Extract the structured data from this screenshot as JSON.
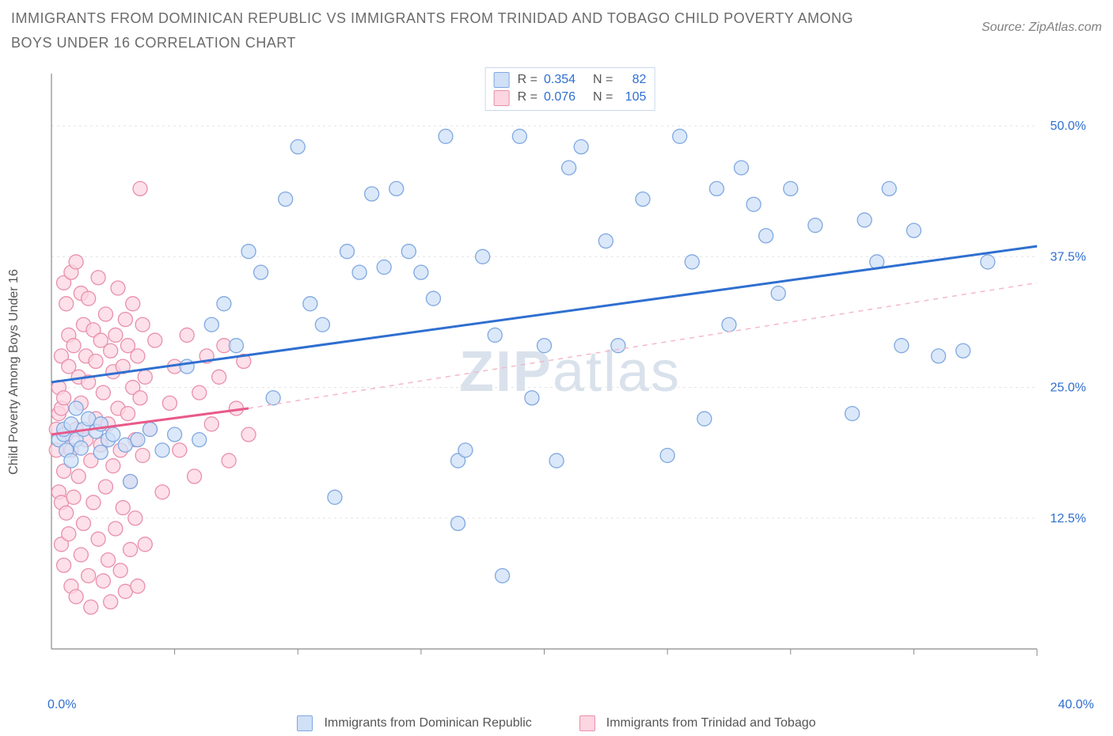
{
  "header": {
    "title": "IMMIGRANTS FROM DOMINICAN REPUBLIC VS IMMIGRANTS FROM TRINIDAD AND TOBAGO CHILD POVERTY AMONG BOYS UNDER 16 CORRELATION CHART",
    "source": "Source: ZipAtlas.com"
  },
  "watermark": {
    "part1": "ZIP",
    "part2": "atlas"
  },
  "chart": {
    "type": "scatter",
    "y_axis_label": "Child Poverty Among Boys Under 16",
    "xlim": [
      0,
      40
    ],
    "ylim": [
      0,
      55
    ],
    "x_ticks": [
      {
        "pos": 0.0,
        "label": "0.0%"
      },
      {
        "pos": 40.0,
        "label": "40.0%"
      }
    ],
    "x_minor_ticks": [
      5,
      10,
      15,
      20,
      25,
      30,
      35
    ],
    "y_ticks": [
      {
        "pos": 12.5,
        "label": "12.5%"
      },
      {
        "pos": 25.0,
        "label": "25.0%"
      },
      {
        "pos": 37.5,
        "label": "37.5%"
      },
      {
        "pos": 50.0,
        "label": "50.0%"
      }
    ],
    "grid_color": "#e4e4e4",
    "axis_color": "#8a8a8a",
    "background": "#ffffff",
    "marker_radius": 9,
    "marker_stroke_width": 1.3,
    "series": [
      {
        "id": "dominican",
        "label": "Immigrants from Dominican Republic",
        "fill": "#cfe0f7",
        "stroke": "#7fa8e0",
        "trend": {
          "x1": 0,
          "y1": 25.5,
          "x2": 40,
          "y2": 38.5,
          "color": "#2f6fd0",
          "width": 3,
          "dash": ""
        },
        "points": [
          [
            0.3,
            20.0
          ],
          [
            0.5,
            20.5
          ],
          [
            0.5,
            21.0
          ],
          [
            0.6,
            19.0
          ],
          [
            0.8,
            21.5
          ],
          [
            0.8,
            18.0
          ],
          [
            1.0,
            20.0
          ],
          [
            1.0,
            23.0
          ],
          [
            1.2,
            19.2
          ],
          [
            1.3,
            21.0
          ],
          [
            1.5,
            22.0
          ],
          [
            1.8,
            20.8
          ],
          [
            2.0,
            18.8
          ],
          [
            2.0,
            21.5
          ],
          [
            2.3,
            20.0
          ],
          [
            2.5,
            20.5
          ],
          [
            3.0,
            19.5
          ],
          [
            3.2,
            16.0
          ],
          [
            3.5,
            20.0
          ],
          [
            4.0,
            21.0
          ],
          [
            4.5,
            19.0
          ],
          [
            5.0,
            20.5
          ],
          [
            5.5,
            27.0
          ],
          [
            6.0,
            20.0
          ],
          [
            6.5,
            31.0
          ],
          [
            7.0,
            33.0
          ],
          [
            7.5,
            29.0
          ],
          [
            8.0,
            38.0
          ],
          [
            8.5,
            36.0
          ],
          [
            9.0,
            24.0
          ],
          [
            9.5,
            43.0
          ],
          [
            10.0,
            48.0
          ],
          [
            10.5,
            33.0
          ],
          [
            11.0,
            31.0
          ],
          [
            11.5,
            14.5
          ],
          [
            12.0,
            38.0
          ],
          [
            12.5,
            36.0
          ],
          [
            13.0,
            43.5
          ],
          [
            13.5,
            36.5
          ],
          [
            14.0,
            44.0
          ],
          [
            14.5,
            38.0
          ],
          [
            15.0,
            36.0
          ],
          [
            15.5,
            33.5
          ],
          [
            16.0,
            49.0
          ],
          [
            16.5,
            12.0
          ],
          [
            16.5,
            18.0
          ],
          [
            16.8,
            19.0
          ],
          [
            17.5,
            37.5
          ],
          [
            18.0,
            30.0
          ],
          [
            18.3,
            7.0
          ],
          [
            19.0,
            49.0
          ],
          [
            19.5,
            24.0
          ],
          [
            20.0,
            29.0
          ],
          [
            20.5,
            18.0
          ],
          [
            21.0,
            46.0
          ],
          [
            21.5,
            48.0
          ],
          [
            22.5,
            39.0
          ],
          [
            23.0,
            29.0
          ],
          [
            24.0,
            43.0
          ],
          [
            25.0,
            18.5
          ],
          [
            25.5,
            49.0
          ],
          [
            26.0,
            37.0
          ],
          [
            26.5,
            22.0
          ],
          [
            27.0,
            44.0
          ],
          [
            27.5,
            31.0
          ],
          [
            28.0,
            46.0
          ],
          [
            28.5,
            42.5
          ],
          [
            29.0,
            39.5
          ],
          [
            29.5,
            34.0
          ],
          [
            30.0,
            44.0
          ],
          [
            31.0,
            40.5
          ],
          [
            32.5,
            22.5
          ],
          [
            33.0,
            41.0
          ],
          [
            33.5,
            37.0
          ],
          [
            34.0,
            44.0
          ],
          [
            34.5,
            29.0
          ],
          [
            35.0,
            40.0
          ],
          [
            36.0,
            28.0
          ],
          [
            37.0,
            28.5
          ],
          [
            38.0,
            37.0
          ]
        ]
      },
      {
        "id": "trinidad",
        "label": "Immigrants from Trinidad and Tobago",
        "fill": "#fcd6e1",
        "stroke": "#e98fab",
        "trend_solid": {
          "x1": 0,
          "y1": 20.5,
          "x2": 8,
          "y2": 23.0,
          "color": "#e85a8a",
          "width": 3
        },
        "trend_dash": {
          "x1": 8,
          "y1": 23.0,
          "x2": 40,
          "y2": 35.0,
          "color": "#f4b8c9",
          "width": 1.5,
          "dash": "6 6"
        },
        "points": [
          [
            0.2,
            21.0
          ],
          [
            0.2,
            19.0
          ],
          [
            0.3,
            22.5
          ],
          [
            0.3,
            15.0
          ],
          [
            0.3,
            25.0
          ],
          [
            0.4,
            14.0
          ],
          [
            0.4,
            23.0
          ],
          [
            0.4,
            28.0
          ],
          [
            0.4,
            10.0
          ],
          [
            0.5,
            35.0
          ],
          [
            0.5,
            17.0
          ],
          [
            0.5,
            8.0
          ],
          [
            0.5,
            24.0
          ],
          [
            0.6,
            33.0
          ],
          [
            0.6,
            13.0
          ],
          [
            0.6,
            20.5
          ],
          [
            0.7,
            30.0
          ],
          [
            0.7,
            11.0
          ],
          [
            0.7,
            27.0
          ],
          [
            0.8,
            6.0
          ],
          [
            0.8,
            36.0
          ],
          [
            0.8,
            19.0
          ],
          [
            0.9,
            29.0
          ],
          [
            0.9,
            14.5
          ],
          [
            1.0,
            37.0
          ],
          [
            1.0,
            5.0
          ],
          [
            1.0,
            21.0
          ],
          [
            1.1,
            26.0
          ],
          [
            1.1,
            16.5
          ],
          [
            1.2,
            34.0
          ],
          [
            1.2,
            9.0
          ],
          [
            1.2,
            23.5
          ],
          [
            1.3,
            31.0
          ],
          [
            1.3,
            12.0
          ],
          [
            1.4,
            20.0
          ],
          [
            1.4,
            28.0
          ],
          [
            1.5,
            7.0
          ],
          [
            1.5,
            25.5
          ],
          [
            1.5,
            33.5
          ],
          [
            1.6,
            18.0
          ],
          [
            1.6,
            4.0
          ],
          [
            1.7,
            30.5
          ],
          [
            1.7,
            14.0
          ],
          [
            1.8,
            22.0
          ],
          [
            1.8,
            27.5
          ],
          [
            1.9,
            10.5
          ],
          [
            1.9,
            35.5
          ],
          [
            2.0,
            19.5
          ],
          [
            2.0,
            29.5
          ],
          [
            2.1,
            6.5
          ],
          [
            2.1,
            24.5
          ],
          [
            2.2,
            32.0
          ],
          [
            2.2,
            15.5
          ],
          [
            2.3,
            21.5
          ],
          [
            2.3,
            8.5
          ],
          [
            2.4,
            28.5
          ],
          [
            2.4,
            4.5
          ],
          [
            2.5,
            26.5
          ],
          [
            2.5,
            17.5
          ],
          [
            2.6,
            30.0
          ],
          [
            2.6,
            11.5
          ],
          [
            2.7,
            23.0
          ],
          [
            2.7,
            34.5
          ],
          [
            2.8,
            19.0
          ],
          [
            2.8,
            7.5
          ],
          [
            2.9,
            27.0
          ],
          [
            2.9,
            13.5
          ],
          [
            3.0,
            31.5
          ],
          [
            3.0,
            5.5
          ],
          [
            3.1,
            22.5
          ],
          [
            3.1,
            29.0
          ],
          [
            3.2,
            16.0
          ],
          [
            3.2,
            9.5
          ],
          [
            3.3,
            25.0
          ],
          [
            3.3,
            33.0
          ],
          [
            3.4,
            20.0
          ],
          [
            3.4,
            12.5
          ],
          [
            3.5,
            28.0
          ],
          [
            3.5,
            6.0
          ],
          [
            3.6,
            44.0
          ],
          [
            3.6,
            24.0
          ],
          [
            3.7,
            18.5
          ],
          [
            3.7,
            31.0
          ],
          [
            3.8,
            10.0
          ],
          [
            3.8,
            26.0
          ],
          [
            4.0,
            21.0
          ],
          [
            4.2,
            29.5
          ],
          [
            4.5,
            15.0
          ],
          [
            4.8,
            23.5
          ],
          [
            5.0,
            27.0
          ],
          [
            5.2,
            19.0
          ],
          [
            5.5,
            30.0
          ],
          [
            5.8,
            16.5
          ],
          [
            6.0,
            24.5
          ],
          [
            6.3,
            28.0
          ],
          [
            6.5,
            21.5
          ],
          [
            6.8,
            26.0
          ],
          [
            7.0,
            29.0
          ],
          [
            7.2,
            18.0
          ],
          [
            7.5,
            23.0
          ],
          [
            7.8,
            27.5
          ],
          [
            8.0,
            20.5
          ]
        ]
      }
    ],
    "legend_top": {
      "rows": [
        {
          "swatch_fill": "#cfe0f7",
          "swatch_stroke": "#7fa8e0",
          "r_label": "R =",
          "r_value": "0.354",
          "n_label": "N =",
          "n_value": "82"
        },
        {
          "swatch_fill": "#fcd6e1",
          "swatch_stroke": "#e98fab",
          "r_label": "R =",
          "r_value": "0.076",
          "n_label": "N =",
          "n_value": "105"
        }
      ]
    },
    "legend_bottom": [
      {
        "swatch_fill": "#cfe0f7",
        "swatch_stroke": "#7fa8e0",
        "label": "Immigrants from Dominican Republic"
      },
      {
        "swatch_fill": "#fcd6e1",
        "swatch_stroke": "#e98fab",
        "label": "Immigrants from Trinidad and Tobago"
      }
    ]
  }
}
